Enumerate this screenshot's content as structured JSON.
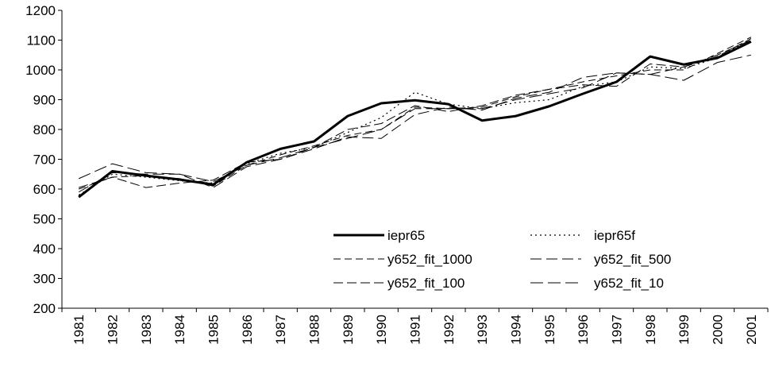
{
  "chart_data": {
    "type": "line",
    "categories": [
      "1981",
      "1982",
      "1983",
      "1984",
      "1985",
      "1986",
      "1987",
      "1988",
      "1989",
      "1990",
      "1991",
      "1992",
      "1993",
      "1994",
      "1995",
      "1996",
      "1997",
      "1998",
      "1999",
      "2000",
      "2001"
    ],
    "series": [
      {
        "name": "iepr65",
        "color": "#000000",
        "width": 3,
        "dash": "none",
        "values": [
          573,
          660,
          645,
          632,
          615,
          690,
          735,
          760,
          845,
          888,
          898,
          885,
          830,
          845,
          878,
          920,
          960,
          1045,
          1018,
          1040,
          1095
        ]
      },
      {
        "name": "iepr65f",
        "color": "#000000",
        "width": 1.2,
        "dash": "2,4",
        "values": [
          580,
          650,
          640,
          628,
          620,
          685,
          720,
          740,
          790,
          840,
          925,
          885,
          870,
          890,
          900,
          945,
          960,
          1010,
          1005,
          1040,
          1105
        ]
      },
      {
        "name": "y652_fit_1000",
        "color": "#000000",
        "width": 1,
        "dash": "9,5",
        "values": [
          600,
          640,
          645,
          635,
          610,
          680,
          715,
          745,
          780,
          800,
          875,
          870,
          875,
          910,
          935,
          960,
          980,
          1000,
          1000,
          1055,
          1110
        ]
      },
      {
        "name": "y652_fit_500",
        "color": "#000000",
        "width": 1,
        "dash": "14,6",
        "values": [
          590,
          655,
          650,
          650,
          605,
          675,
          700,
          735,
          775,
          770,
          850,
          875,
          865,
          905,
          925,
          975,
          990,
          985,
          1010,
          1050,
          1100
        ]
      },
      {
        "name": "y652_fit_100",
        "color": "#000000",
        "width": 1,
        "dash": "12,5",
        "values": [
          605,
          640,
          605,
          620,
          630,
          690,
          700,
          740,
          800,
          820,
          880,
          860,
          880,
          915,
          935,
          950,
          945,
          1020,
          1010,
          1045,
          1105
        ]
      },
      {
        "name": "y652_fit_10",
        "color": "#000000",
        "width": 1,
        "dash": "16,6",
        "values": [
          635,
          685,
          655,
          650,
          625,
          680,
          705,
          740,
          770,
          800,
          870,
          870,
          870,
          900,
          920,
          940,
          990,
          985,
          965,
          1025,
          1050
        ]
      }
    ],
    "ylim": [
      200,
      1200
    ],
    "yticks": [
      200,
      300,
      400,
      500,
      600,
      700,
      800,
      900,
      1000,
      1100,
      1200
    ],
    "grid": false,
    "legend": "lower right"
  }
}
